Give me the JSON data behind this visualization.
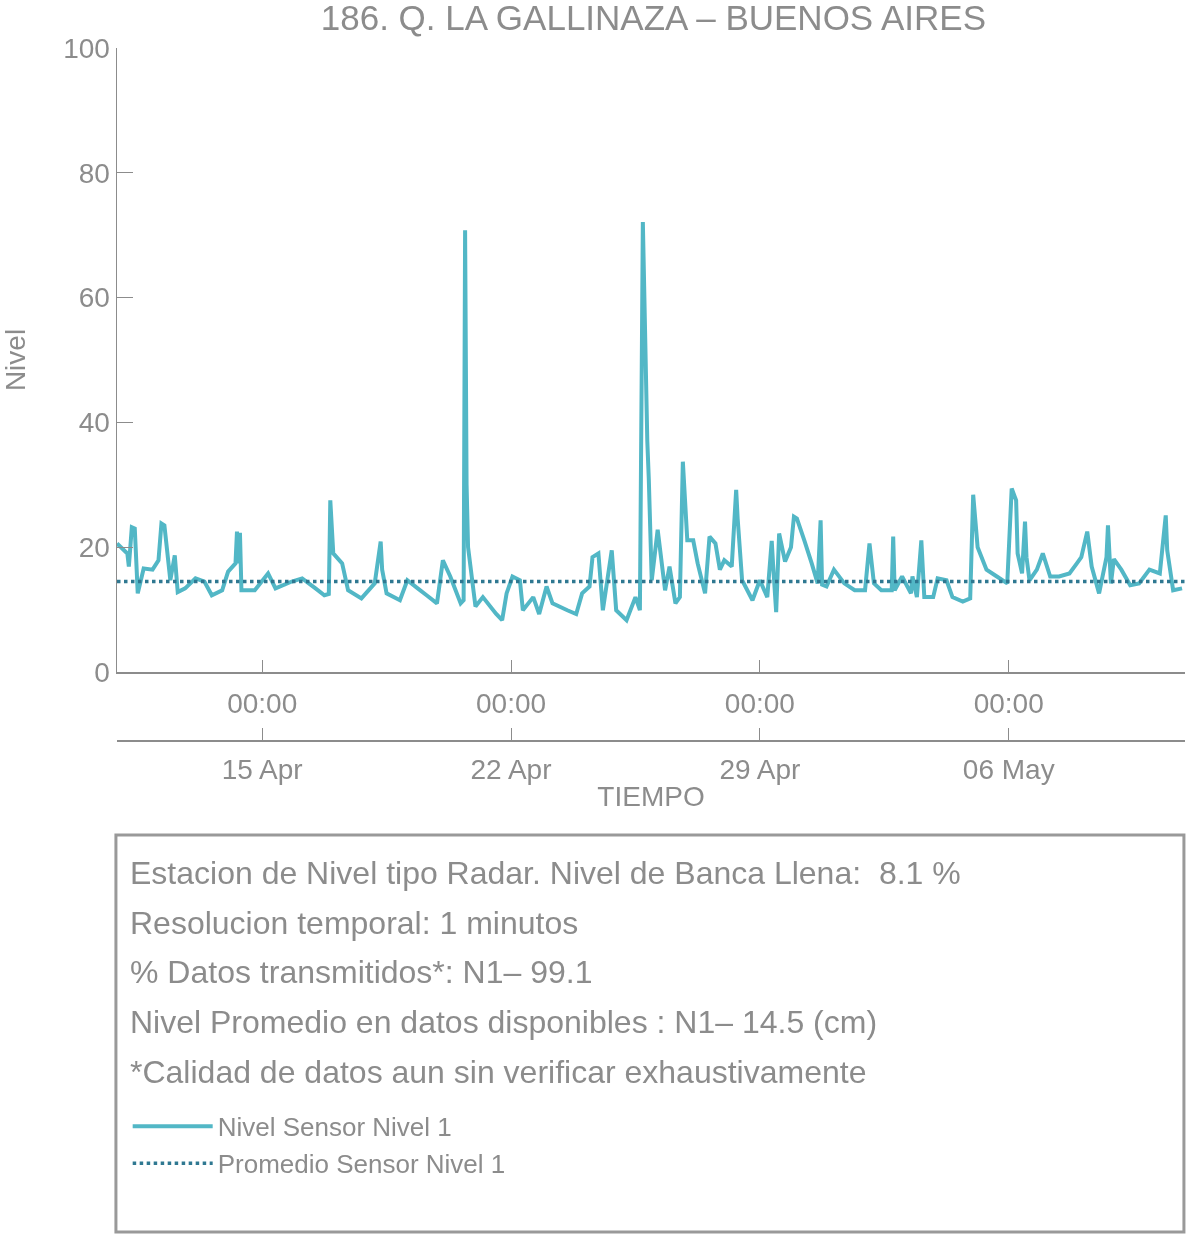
{
  "chart_data": {
    "type": "line",
    "title": "186. Q. LA GALLINAZA – BUENOS AIRES",
    "xlabel": "TIEMPO",
    "ylabel": "Nivel",
    "xlim": [
      "--04-10T22:00",
      "--05-10T23:00"
    ],
    "ylim": [
      0,
      100
    ],
    "yticks": [
      0,
      20,
      40,
      60,
      80,
      100
    ],
    "xticks": [
      {
        "value": "--04-15T00:00",
        "label": "00:00"
      },
      {
        "value": "--04-22T00:00",
        "label": "00:00"
      },
      {
        "value": "--04-29T00:00",
        "label": "00:00"
      },
      {
        "value": "--05-06T00:00",
        "label": "00:00"
      }
    ],
    "x2lim": [
      "--04-10T22:00",
      "--05-10T23:00"
    ],
    "x2ticks": [
      {
        "value": "--04-15T00:00",
        "label": "15 Apr"
      },
      {
        "value": "--04-22T00:00",
        "label": "22 Apr"
      },
      {
        "value": "--04-29T00:00",
        "label": "29 Apr"
      },
      {
        "value": "--05-06T00:00",
        "label": "06 May"
      }
    ],
    "grid": false,
    "legend": "bottom left",
    "line_style": "solid",
    "marker": "none",
    "series": [
      {
        "name": "Nivel Sensor Nivel 1",
        "color": "#52b7c6",
        "x": [
          "--04-10T22:00",
          "--04-11T05:00",
          "--04-11T06:00",
          "--04-11T08:00",
          "--04-11T10:00",
          "--04-11T12:00",
          "--04-11T16:00",
          "--04-11T22:00",
          "--04-12T02:00",
          "--04-12T04:00",
          "--04-12T06:00",
          "--04-12T10:00",
          "--04-12T13:00",
          "--04-12T15:00",
          "--04-12T20:00",
          "--04-13T03:00",
          "--04-13T09:00",
          "--04-13T14:00",
          "--04-13T21:00",
          "--04-14T01:00",
          "--04-14T06:00",
          "--04-14T07:00",
          "--04-14T08:00",
          "--04-14T09:00",
          "--04-14T10:00",
          "--04-14T19:00",
          "--04-15T04:00",
          "--04-15T09:00",
          "--04-15T20:00",
          "--04-16T03:00",
          "--04-16T12:00",
          "--04-16T18:00",
          "--04-16T21:00",
          "--04-16T22:00",
          "--04-17T00:00",
          "--04-17T06:00",
          "--04-17T10:00",
          "--04-17T19:00",
          "--04-18T04:00",
          "--04-18T08:00",
          "--04-18T09:00",
          "--04-18T12:00",
          "--04-18T21:00",
          "--04-19T02:00",
          "--04-19T09:00",
          "--04-19T15:00",
          "--04-19T22:00",
          "--04-20T02:00",
          "--04-20T07:00",
          "--04-20T14:00",
          "--04-20T16:00",
          "--04-20T17:00",
          "--04-20T18:00",
          "--04-20T19:00",
          "--04-21T00:00",
          "--04-21T05:00",
          "--04-21T14:00",
          "--04-21T18:00",
          "--04-21T21:00",
          "--04-22T01:00",
          "--04-22T06:00",
          "--04-22T08:00",
          "--04-22T15:00",
          "--04-22T19:00",
          "--04-23T00:00",
          "--04-23T04:00",
          "--04-23T14:00",
          "--04-23T20:00",
          "--04-24T00:00",
          "--04-24T05:00",
          "--04-24T07:00",
          "--04-24T11:00",
          "--04-24T14:00",
          "--04-24T20:00",
          "--04-24T23:00",
          "--04-25T06:00",
          "--04-25T12:00",
          "--04-25T15:00",
          "--04-25T17:00",
          "--04-25T20:00",
          "--04-25T21:00",
          "--04-25T23:00",
          "--04-26T03:00",
          "--04-26T08:00",
          "--04-26T11:00",
          "--04-26T15:00",
          "--04-26T18:00",
          "--04-26T20:00",
          "--04-26T23:00",
          "--04-27T03:00",
          "--04-27T06:00",
          "--04-27T11:00",
          "--04-27T14:00",
          "--04-27T18:00",
          "--04-27T21:00",
          "--04-28T00:00",
          "--04-28T05:00",
          "--04-28T08:00",
          "--04-28T09:00",
          "--04-28T12:00",
          "--04-28T19:00",
          "--04-29T00:00",
          "--04-29T05:00",
          "--04-29T08:00",
          "--04-29T09:00",
          "--04-29T11:00",
          "--04-29T13:00",
          "--04-29T17:00",
          "--04-29T21:00",
          "--04-29T23:00",
          "--04-30T01:00",
          "--04-30T06:00",
          "--04-30T11:00",
          "--04-30T15:00",
          "--04-30T17:00",
          "--04-30T18:00",
          "--04-30T21:00",
          "--05-01T02:00",
          "--05-01T09:00",
          "--05-01T16:00",
          "--05-01T23:00",
          "--05-02T02:00",
          "--05-02T05:00",
          "--05-02T10:00",
          "--05-02T17:00",
          "--05-02T18:00",
          "--05-02T19:00",
          "--05-03T00:00",
          "--05-03T06:00",
          "--05-03T07:00",
          "--05-03T10:00",
          "--05-03T13:00",
          "--05-03T15:00",
          "--05-03T21:00",
          "--05-04T00:00",
          "--05-04T06:00",
          "--05-04T10:00",
          "--05-04T17:00",
          "--05-04T22:00",
          "--05-05T00:00",
          "--05-05T03:00",
          "--05-05T09:00",
          "--05-05T16:00",
          "--05-05T23:00",
          "--05-06T02:00",
          "--05-06T05:00",
          "--05-06T06:00",
          "--05-06T09:00",
          "--05-06T11:00",
          "--05-06T12:00",
          "--05-06T14:00",
          "--05-06T19:00",
          "--05-06T23:00",
          "--05-07T04:00",
          "--05-07T10:00",
          "--05-07T17:00",
          "--05-07T22:00",
          "--05-08T01:00",
          "--05-08T05:00",
          "--05-08T08:00",
          "--05-08T13:00",
          "--05-08T18:00",
          "--05-08T19:00",
          "--05-08T21:00",
          "--05-08T23:00",
          "--05-09T04:00",
          "--05-09T10:00",
          "--05-09T16:00",
          "--05-09T23:00",
          "--05-10T06:00",
          "--05-10T10:00",
          "--05-10T11:00",
          "--05-10T15:00",
          "--05-10T21:00"
        ],
        "values": [
          20.6,
          19.0,
          16.9,
          23.2,
          23.0,
          12.6,
          16.6,
          16.4,
          17.9,
          23.8,
          23.5,
          14.7,
          18.7,
          12.8,
          13.4,
          15.0,
          14.5,
          12.3,
          13.1,
          16.1,
          17.4,
          22.5,
          17.4,
          22.3,
          13.1,
          13.1,
          15.8,
          13.4,
          14.5,
          15.0,
          13.4,
          12.3,
          12.5,
          27.5,
          19.0,
          17.4,
          13.1,
          11.8,
          14.2,
          20.9,
          16.4,
          12.6,
          11.5,
          14.7,
          13.4,
          12.3,
          11.0,
          17.9,
          15.3,
          11.0,
          11.5,
          70.8,
          30.0,
          20.0,
          10.5,
          12.0,
          9.3,
          8.3,
          12.6,
          15.3,
          14.7,
          9.9,
          12.0,
          9.3,
          13.7,
          11.0,
          9.9,
          9.3,
          12.6,
          13.7,
          18.4,
          19.0,
          9.9,
          19.5,
          9.9,
          8.3,
          12.0,
          9.9,
          72.1,
          37.0,
          31.0,
          14.7,
          22.8,
          13.1,
          16.9,
          11.0,
          12.0,
          33.7,
          21.1,
          21.1,
          17.4,
          12.6,
          21.7,
          20.6,
          16.4,
          17.9,
          16.9,
          29.2,
          24.6,
          14.7,
          11.5,
          14.7,
          12.0,
          21.0,
          16.9,
          9.6,
          22.2,
          17.7,
          20.0,
          24.9,
          24.6,
          21.1,
          17.4,
          14.2,
          24.3,
          14.0,
          13.7,
          16.4,
          14.2,
          13.1,
          13.1,
          20.6,
          14.2,
          13.1,
          13.1,
          21.7,
          13.1,
          15.3,
          12.6,
          15.3,
          12.0,
          21.1,
          12.0,
          12.0,
          15.0,
          14.7,
          12.0,
          11.3,
          11.8,
          28.4,
          20.0,
          16.4,
          15.3,
          14.2,
          29.4,
          27.5,
          19.0,
          15.8,
          24.1,
          18.4,
          14.7,
          16.4,
          19.0,
          15.3,
          15.3,
          15.8,
          17.4,
          18.4,
          22.5,
          16.9,
          12.6,
          18.4,
          23.5,
          14.2,
          18.1,
          16.4,
          13.9,
          14.2,
          16.4,
          15.8,
          25.1,
          19.5,
          13.1,
          13.4
        ]
      }
    ],
    "ref_lines": [
      {
        "axis": "y",
        "value": 14.5,
        "label": "Promedio Sensor Nivel 1",
        "color": "#2f7891",
        "line_style": "dotted"
      }
    ],
    "annotations": [
      "Estacion de Nivel tipo Radar. Nivel de Banca Llena:  8.1 %",
      "Resolucion temporal: 1 minutos",
      "% Datos transmitidos*: N1– 99.1",
      "Nivel Promedio en datos disponibles : N1– 14.5 (cm)",
      "*Calidad de datos aun sin verificar exhaustivamente"
    ]
  }
}
